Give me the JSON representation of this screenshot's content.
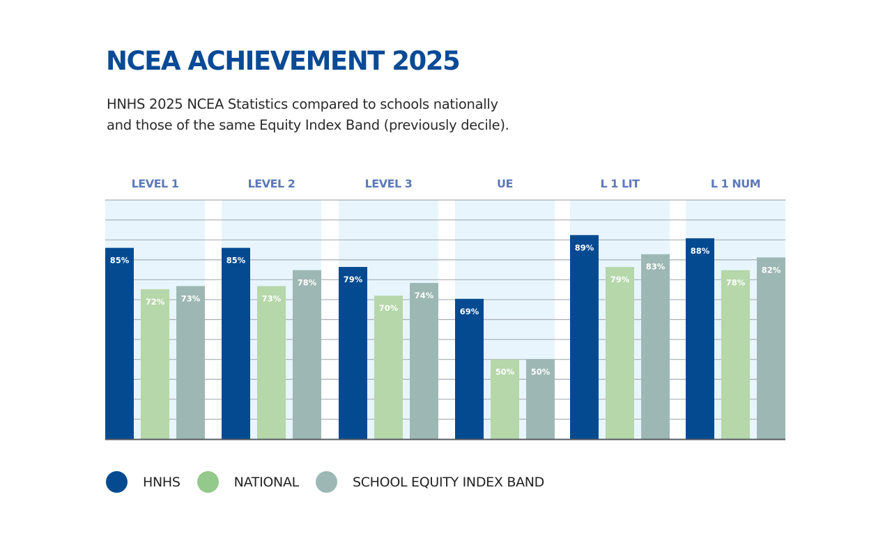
{
  "header": {
    "title": "NCEA ACHIEVEMENT 2025",
    "subtitle_lines": [
      "HNHS 2025 NCEA Statistics compared to schools nationally",
      "and those of the same Equity Index Band (previously decile)."
    ]
  },
  "colors": {
    "title": "#0a4a96",
    "category_label": "#5b79b8",
    "hnhs": "#034a91",
    "national": "#b5d7a9",
    "national_legend": "#93c98a",
    "band": "#9db8b4",
    "column_background": "#e8f5fd",
    "gridline": "#a9aeb3",
    "baseline": "#555b60"
  },
  "legend": [
    {
      "label": "HNHS",
      "color": "#034a91"
    },
    {
      "label": "NATIONAL",
      "color": "#93c98a"
    },
    {
      "label": "SCHOOL EQUITY INDEX BAND",
      "color": "#9db8b4"
    }
  ],
  "chart_data": {
    "type": "bar",
    "title": "NCEA ACHIEVEMENT 2025",
    "xlabel": "",
    "ylabel": "",
    "categories": [
      "LEVEL 1",
      "LEVEL 2",
      "LEVEL 3",
      "UE",
      "L 1 LIT",
      "L 1 NUM"
    ],
    "series": [
      {
        "name": "HNHS",
        "values": [
          85,
          85,
          79,
          69,
          89,
          88
        ]
      },
      {
        "name": "NATIONAL",
        "values": [
          72,
          73,
          70,
          50,
          79,
          78
        ]
      },
      {
        "name": "SCHOOL EQUITY INDEX BAND",
        "values": [
          73,
          78,
          74,
          50,
          83,
          82
        ]
      }
    ],
    "value_suffix": "%",
    "ylim": [
      25,
      100
    ],
    "grid": true,
    "gridline_count": 12,
    "legend_position": "bottom-left",
    "data_labels": true,
    "axis_tick_labels": false
  }
}
